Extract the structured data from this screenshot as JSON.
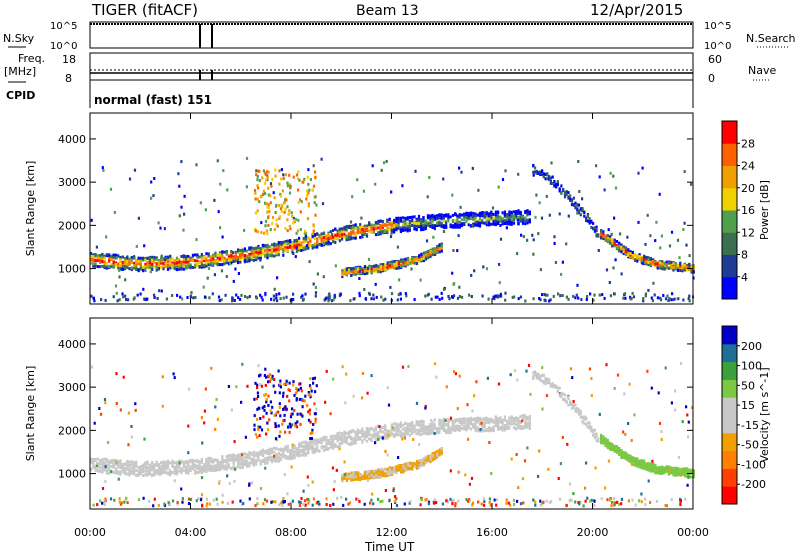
{
  "header": {
    "radar": "TIGER (fitACF)",
    "beam": "Beam 13",
    "date": "12/Apr/2015"
  },
  "top_panels": {
    "nsky_label": "N.Sky",
    "nsky_ticks": [
      "10^5",
      "10^0"
    ],
    "nsearch_label": "N.Search",
    "nsearch_ticks": [
      "10^5",
      "10^0"
    ],
    "freq_label_1": "Freq.",
    "freq_label_2": "[MHz]",
    "freq_ticks": [
      "18",
      "8"
    ],
    "nave_label": "Nave",
    "nave_ticks": [
      "60",
      "0"
    ],
    "cpid_label": "CPID",
    "cpid_text": "normal (fast) 151"
  },
  "colors": {
    "power_scale": [
      "#0000ff",
      "#1e3c96",
      "#3c6e50",
      "#50a050",
      "#f0d000",
      "#f0a000",
      "#ff6000",
      "#ff0000"
    ],
    "velocity_scale": [
      "#ff0000",
      "#ff4000",
      "#ff8000",
      "#f0a000",
      "#c8c8c8",
      "#c8c8c8",
      "#7ac843",
      "#3ca03c",
      "#1e6e96",
      "#0000c8"
    ]
  },
  "chart_data": [
    {
      "type": "heatmap",
      "title": "",
      "xlabel": "Time UT",
      "ylabel": "Slant Range [km]",
      "x_ticks": [
        "00:00",
        "04:00",
        "08:00",
        "12:00",
        "16:00",
        "20:00",
        "00:00"
      ],
      "y_ticks": [
        "1000",
        "2000",
        "3000",
        "4000"
      ],
      "xlim_hours": [
        0,
        24
      ],
      "ylim_km": [
        180,
        4600
      ],
      "colorbar_label": "Power [dB]",
      "colorbar_ticks": [
        "4",
        "8",
        "12",
        "16",
        "20",
        "24",
        "28"
      ],
      "colorbar_range": [
        0,
        32
      ],
      "backscatter_bands": [
        {
          "name": "main",
          "points": [
            [
              0,
              1200
            ],
            [
              2,
              1100
            ],
            [
              4,
              1150
            ],
            [
              6,
              1300
            ],
            [
              8,
              1500
            ],
            [
              10,
              1800
            ],
            [
              12,
              2000
            ],
            [
              14,
              2100
            ],
            [
              16,
              2150
            ],
            [
              17.5,
              2200
            ]
          ]
        },
        {
          "name": "lower",
          "points": [
            [
              10,
              900
            ],
            [
              11.5,
              1000
            ],
            [
              13,
              1200
            ],
            [
              14,
              1500
            ]
          ]
        },
        {
          "name": "evening",
          "points": [
            [
              20.3,
              1800
            ],
            [
              21.5,
              1300
            ],
            [
              22.5,
              1100
            ],
            [
              24,
              1000
            ]
          ]
        }
      ]
    },
    {
      "type": "heatmap",
      "title": "",
      "xlabel": "Time UT",
      "ylabel": "Slant Range [km]",
      "x_ticks": [
        "00:00",
        "04:00",
        "08:00",
        "12:00",
        "16:00",
        "20:00",
        "00:00"
      ],
      "y_ticks": [
        "1000",
        "2000",
        "3000",
        "4000"
      ],
      "xlim_hours": [
        0,
        24
      ],
      "ylim_km": [
        180,
        4600
      ],
      "colorbar_label": "Velocity [m s^-1]",
      "colorbar_ticks": [
        "-200",
        "-100",
        "-50",
        "-15",
        "15",
        "50",
        "100",
        "200"
      ],
      "colorbar_range": [
        -250,
        250
      ]
    }
  ]
}
